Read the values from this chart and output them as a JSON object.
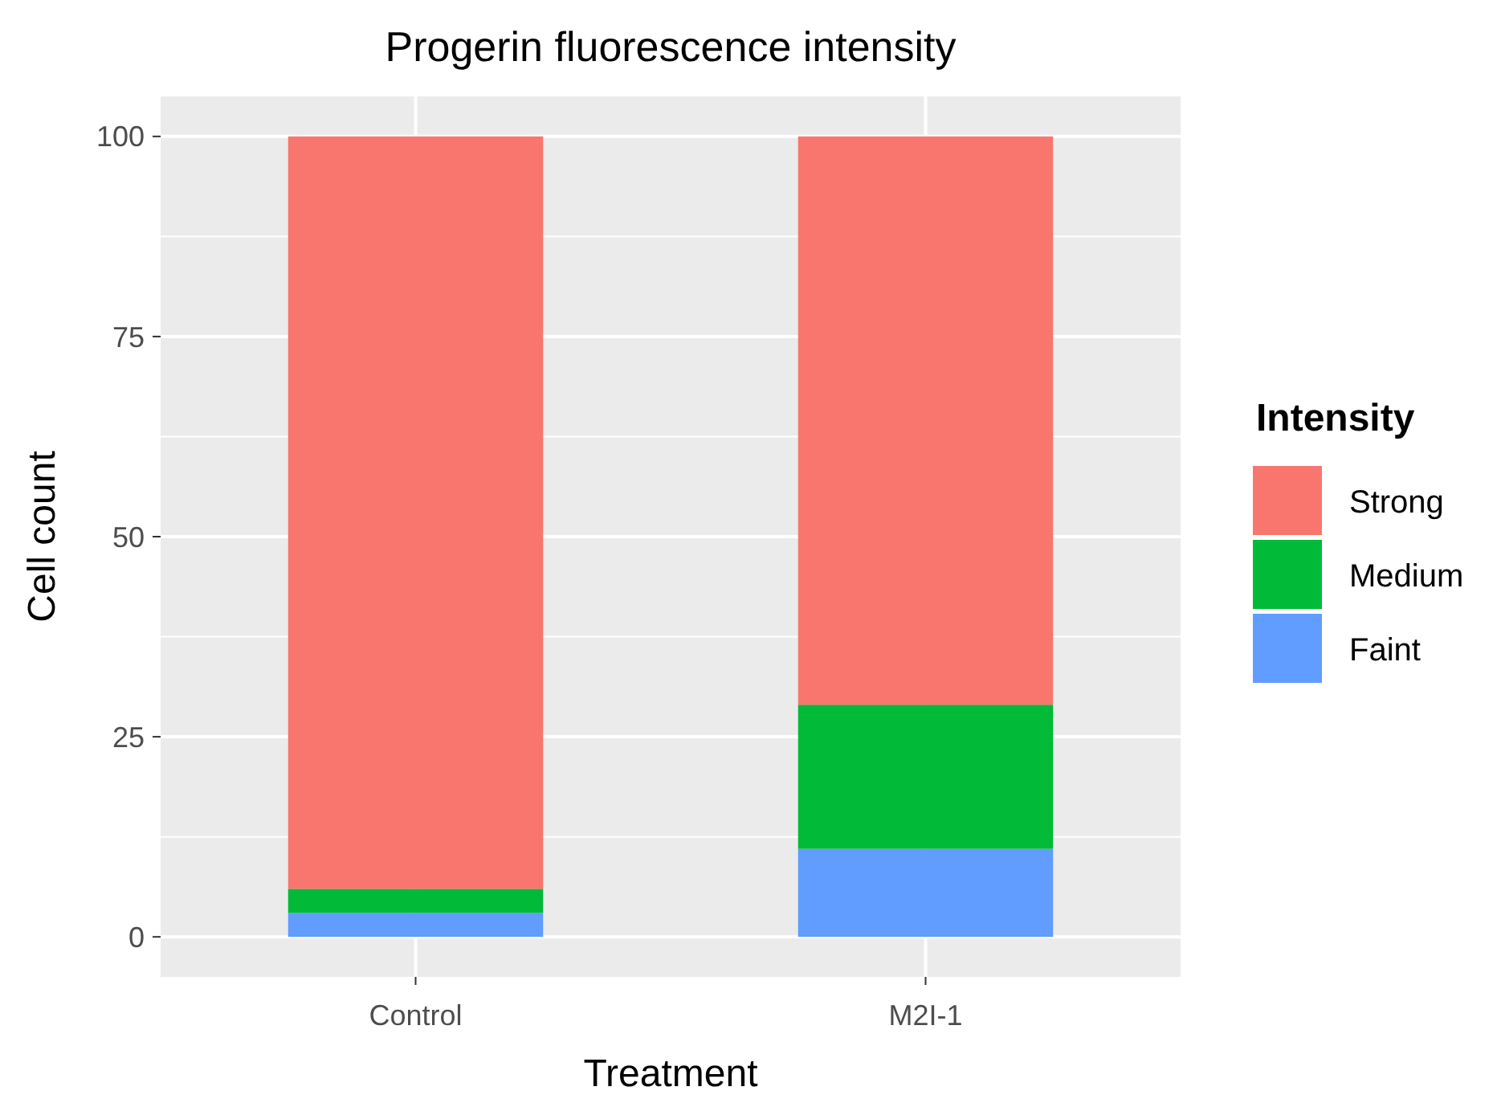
{
  "chart_data": {
    "type": "bar",
    "title": "Progerin fluorescence intensity",
    "xlabel": "Treatment",
    "ylabel": "Cell count",
    "legend_title": "Intensity",
    "categories": [
      "Control",
      "M2I-1"
    ],
    "stacked": true,
    "series": [
      {
        "name": "Faint",
        "color": "#619cff",
        "values": [
          3,
          11
        ]
      },
      {
        "name": "Medium",
        "color": "#00ba38",
        "values": [
          3,
          18
        ]
      },
      {
        "name": "Strong",
        "color": "#f8766d",
        "values": [
          94,
          71
        ]
      }
    ],
    "ylim": [
      -5,
      105
    ],
    "yticks": [
      0,
      25,
      50,
      75,
      100
    ],
    "grid": true,
    "legend": "right"
  }
}
